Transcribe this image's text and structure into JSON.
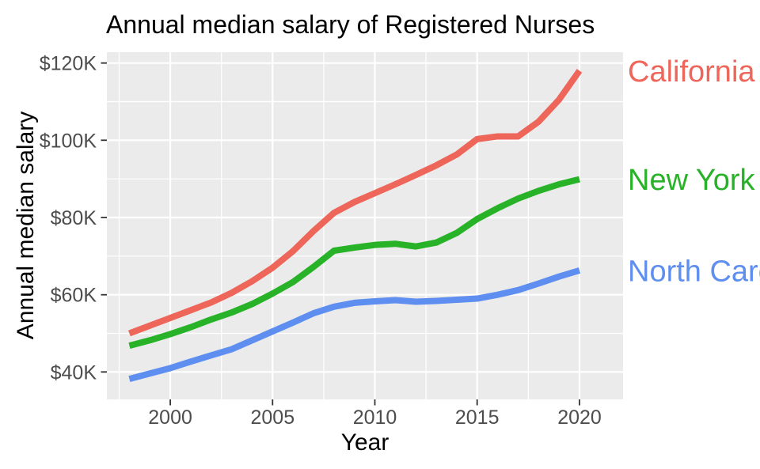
{
  "chart_data": {
    "type": "line",
    "title": "Annual median salary of Registered Nurses",
    "xlabel": "Year",
    "ylabel": "Annual median salary",
    "x": [
      1998,
      1999,
      2000,
      2001,
      2002,
      2003,
      2004,
      2005,
      2006,
      2007,
      2008,
      2009,
      2010,
      2011,
      2012,
      2013,
      2014,
      2015,
      2016,
      2017,
      2018,
      2019,
      2020
    ],
    "series": [
      {
        "name": "California",
        "color": "#ee655a",
        "values": [
          50,
          52,
          54,
          56,
          58,
          60.5,
          63.5,
          67,
          71.3,
          76.5,
          81.2,
          84,
          86.3,
          88.6,
          91,
          93.5,
          96.3,
          100.3,
          101,
          101,
          104.8,
          110.5,
          118
        ]
      },
      {
        "name": "New York",
        "color": "#27b227",
        "values": [
          46.8,
          48.2,
          49.8,
          51.6,
          53.6,
          55.4,
          57.6,
          60.3,
          63.3,
          67.2,
          71.4,
          72.2,
          72.9,
          73.2,
          72.5,
          73.5,
          76,
          79.6,
          82.4,
          84.9,
          86.9,
          88.6,
          89.9
        ]
      },
      {
        "name": "North Carolina",
        "color": "#5e8ef0",
        "values": [
          38.2,
          39.6,
          41,
          42.7,
          44.3,
          45.9,
          48.2,
          50.5,
          52.8,
          55.2,
          56.9,
          57.9,
          58.3,
          58.6,
          58.2,
          58.4,
          58.7,
          59,
          60,
          61.2,
          62.9,
          64.7,
          66.3
        ]
      }
    ],
    "x_ticks": [
      {
        "value": 2000,
        "label": "2000"
      },
      {
        "value": 2005,
        "label": "2005"
      },
      {
        "value": 2010,
        "label": "2010"
      },
      {
        "value": 2015,
        "label": "2015"
      },
      {
        "value": 2020,
        "label": "2020"
      }
    ],
    "y_ticks": [
      {
        "value": 40,
        "label": "$40K"
      },
      {
        "value": 60,
        "label": "$60K"
      },
      {
        "value": 80,
        "label": "$80K"
      },
      {
        "value": 100,
        "label": "$100K"
      },
      {
        "value": 120,
        "label": "$120K"
      }
    ],
    "xlim": [
      1996.9,
      2022.13
    ],
    "ylim": [
      32.9,
      122.8
    ],
    "grid": true,
    "legend_position": "direct-labels-right",
    "colors": {
      "panel_bg": "#ebebeb",
      "grid": "#ffffff",
      "tick_text": "#4d4d4d",
      "tick_mark": "#333333",
      "title_text": "#000000"
    }
  }
}
